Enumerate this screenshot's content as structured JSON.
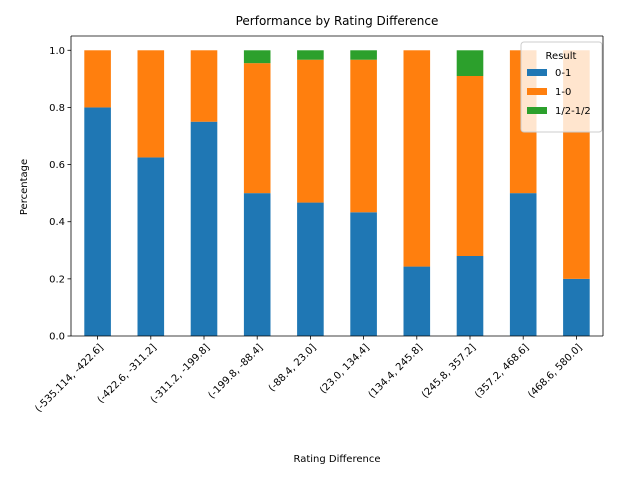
{
  "chart_data": {
    "type": "bar",
    "stacked": true,
    "title": "Performance by Rating Difference",
    "xlabel": "Rating Difference",
    "ylabel": "Percentage",
    "ylim": [
      0,
      1.05
    ],
    "yticks": [
      "0.0",
      "0.2",
      "0.4",
      "0.6",
      "0.8",
      "1.0"
    ],
    "categories": [
      "(-535.114, -422.6]",
      "(-422.6, -311.2]",
      "(-311.2, -199.8]",
      "(-199.8, -88.4]",
      "(-88.4, 23.0]",
      "(23.0, 134.4]",
      "(134.4, 245.8]",
      "(245.8, 357.2]",
      "(357.2, 468.6]",
      "(468.6, 580.0]"
    ],
    "series": [
      {
        "name": "0-1",
        "color": "#1f77b4",
        "values": [
          0.8,
          0.625,
          0.75,
          0.5,
          0.467,
          0.433,
          0.243,
          0.28,
          0.5,
          0.2
        ]
      },
      {
        "name": "1-0",
        "color": "#ff7f0e",
        "values": [
          0.2,
          0.375,
          0.25,
          0.455,
          0.5,
          0.534,
          0.757,
          0.63,
          0.5,
          0.8
        ]
      },
      {
        "name": "1/2-1/2",
        "color": "#2ca02c",
        "values": [
          0.0,
          0.0,
          0.0,
          0.045,
          0.033,
          0.033,
          0.0,
          0.09,
          0.0,
          0.0
        ]
      }
    ],
    "legend": {
      "title": "Result",
      "position": "top-right"
    },
    "grid": false
  }
}
